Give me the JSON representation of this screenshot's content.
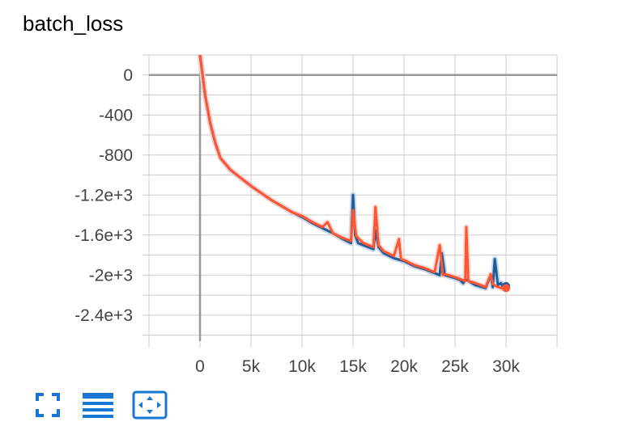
{
  "card": {
    "title": "batch_loss"
  },
  "colors": {
    "series_dark": "#1f5c99",
    "series_dark_faint": "#b3cde8",
    "series_orange": "#ff5533",
    "series_orange_faint": "#fdd3c9",
    "toolbar_icon": "#1976d2",
    "grid": "#cccccc",
    "zero_line": "#999999"
  },
  "toolbar": [
    {
      "name": "fullscreen-icon",
      "interactable": true
    },
    {
      "name": "toggle-log-scale-icon",
      "interactable": true
    },
    {
      "name": "fit-domain-icon",
      "interactable": true
    }
  ],
  "chart_data": {
    "type": "line",
    "title": "batch_loss",
    "xlabel": "",
    "ylabel": "",
    "xlim": [
      -5000,
      35000
    ],
    "ylim": [
      -2660,
      200
    ],
    "grid": true,
    "legend": "none",
    "x_ticks": [
      {
        "value": 0,
        "label": "0"
      },
      {
        "value": 5000,
        "label": "5k"
      },
      {
        "value": 10000,
        "label": "10k"
      },
      {
        "value": 15000,
        "label": "15k"
      },
      {
        "value": 20000,
        "label": "20k"
      },
      {
        "value": 25000,
        "label": "25k"
      },
      {
        "value": 30000,
        "label": "30k"
      }
    ],
    "y_ticks": [
      {
        "value": 0,
        "label": "0"
      },
      {
        "value": -400,
        "label": "-400"
      },
      {
        "value": -800,
        "label": "-800"
      },
      {
        "value": -1200,
        "label": "-1.2e+3"
      },
      {
        "value": -1600,
        "label": "-1.6e+3"
      },
      {
        "value": -2000,
        "label": "-2e+3"
      },
      {
        "value": -2400,
        "label": "-2.4e+3"
      }
    ],
    "series": [
      {
        "color_key": "series_dark",
        "x": [
          0,
          500,
          1000,
          1500,
          2000,
          3000,
          4000,
          5000,
          6000,
          7000,
          8000,
          9000,
          10000,
          11000,
          12000,
          13000,
          14000,
          14800,
          15000,
          15200,
          15500,
          16000,
          17000,
          17200,
          17500,
          18000,
          19000,
          20000,
          21000,
          22000,
          23000,
          23500,
          23700,
          24000,
          25000,
          25500,
          25800,
          26000,
          27000,
          28000,
          28500,
          28700,
          28900,
          29200,
          29500,
          29700,
          30000
        ],
        "y": [
          200,
          -200,
          -480,
          -680,
          -830,
          -950,
          -1030,
          -1110,
          -1180,
          -1250,
          -1310,
          -1370,
          -1420,
          -1480,
          -1530,
          -1580,
          -1640,
          -1680,
          -1200,
          -1600,
          -1680,
          -1700,
          -1740,
          -1550,
          -1720,
          -1780,
          -1830,
          -1860,
          -1910,
          -1940,
          -1980,
          -2000,
          -1780,
          -2000,
          -2030,
          -2050,
          -2080,
          -2040,
          -2100,
          -2130,
          -2000,
          -2120,
          -1840,
          -2100,
          -2080,
          -2120,
          -2110
        ]
      },
      {
        "color_key": "series_orange",
        "x": [
          0,
          500,
          1000,
          1500,
          2000,
          3000,
          4000,
          5000,
          6000,
          7000,
          8000,
          9000,
          10000,
          11000,
          12000,
          12500,
          13000,
          14000,
          14800,
          15000,
          15300,
          16000,
          17000,
          17200,
          17500,
          18000,
          19000,
          19500,
          19700,
          20000,
          21000,
          22000,
          23000,
          23500,
          23800,
          24000,
          25000,
          25500,
          26000,
          26100,
          26300,
          27000,
          28000,
          28500,
          28700,
          29000,
          29500,
          30000
        ],
        "y": [
          200,
          -200,
          -480,
          -680,
          -830,
          -950,
          -1030,
          -1110,
          -1180,
          -1250,
          -1310,
          -1370,
          -1410,
          -1470,
          -1520,
          -1470,
          -1580,
          -1630,
          -1660,
          -1350,
          -1610,
          -1680,
          -1720,
          -1320,
          -1700,
          -1760,
          -1810,
          -1640,
          -1840,
          -1850,
          -1900,
          -1930,
          -1970,
          -1700,
          -2000,
          -1990,
          -2020,
          -2040,
          -2060,
          -1520,
          -2060,
          -2080,
          -2120,
          -1990,
          -2090,
          -2110,
          -2130,
          -2130
        ]
      }
    ]
  }
}
